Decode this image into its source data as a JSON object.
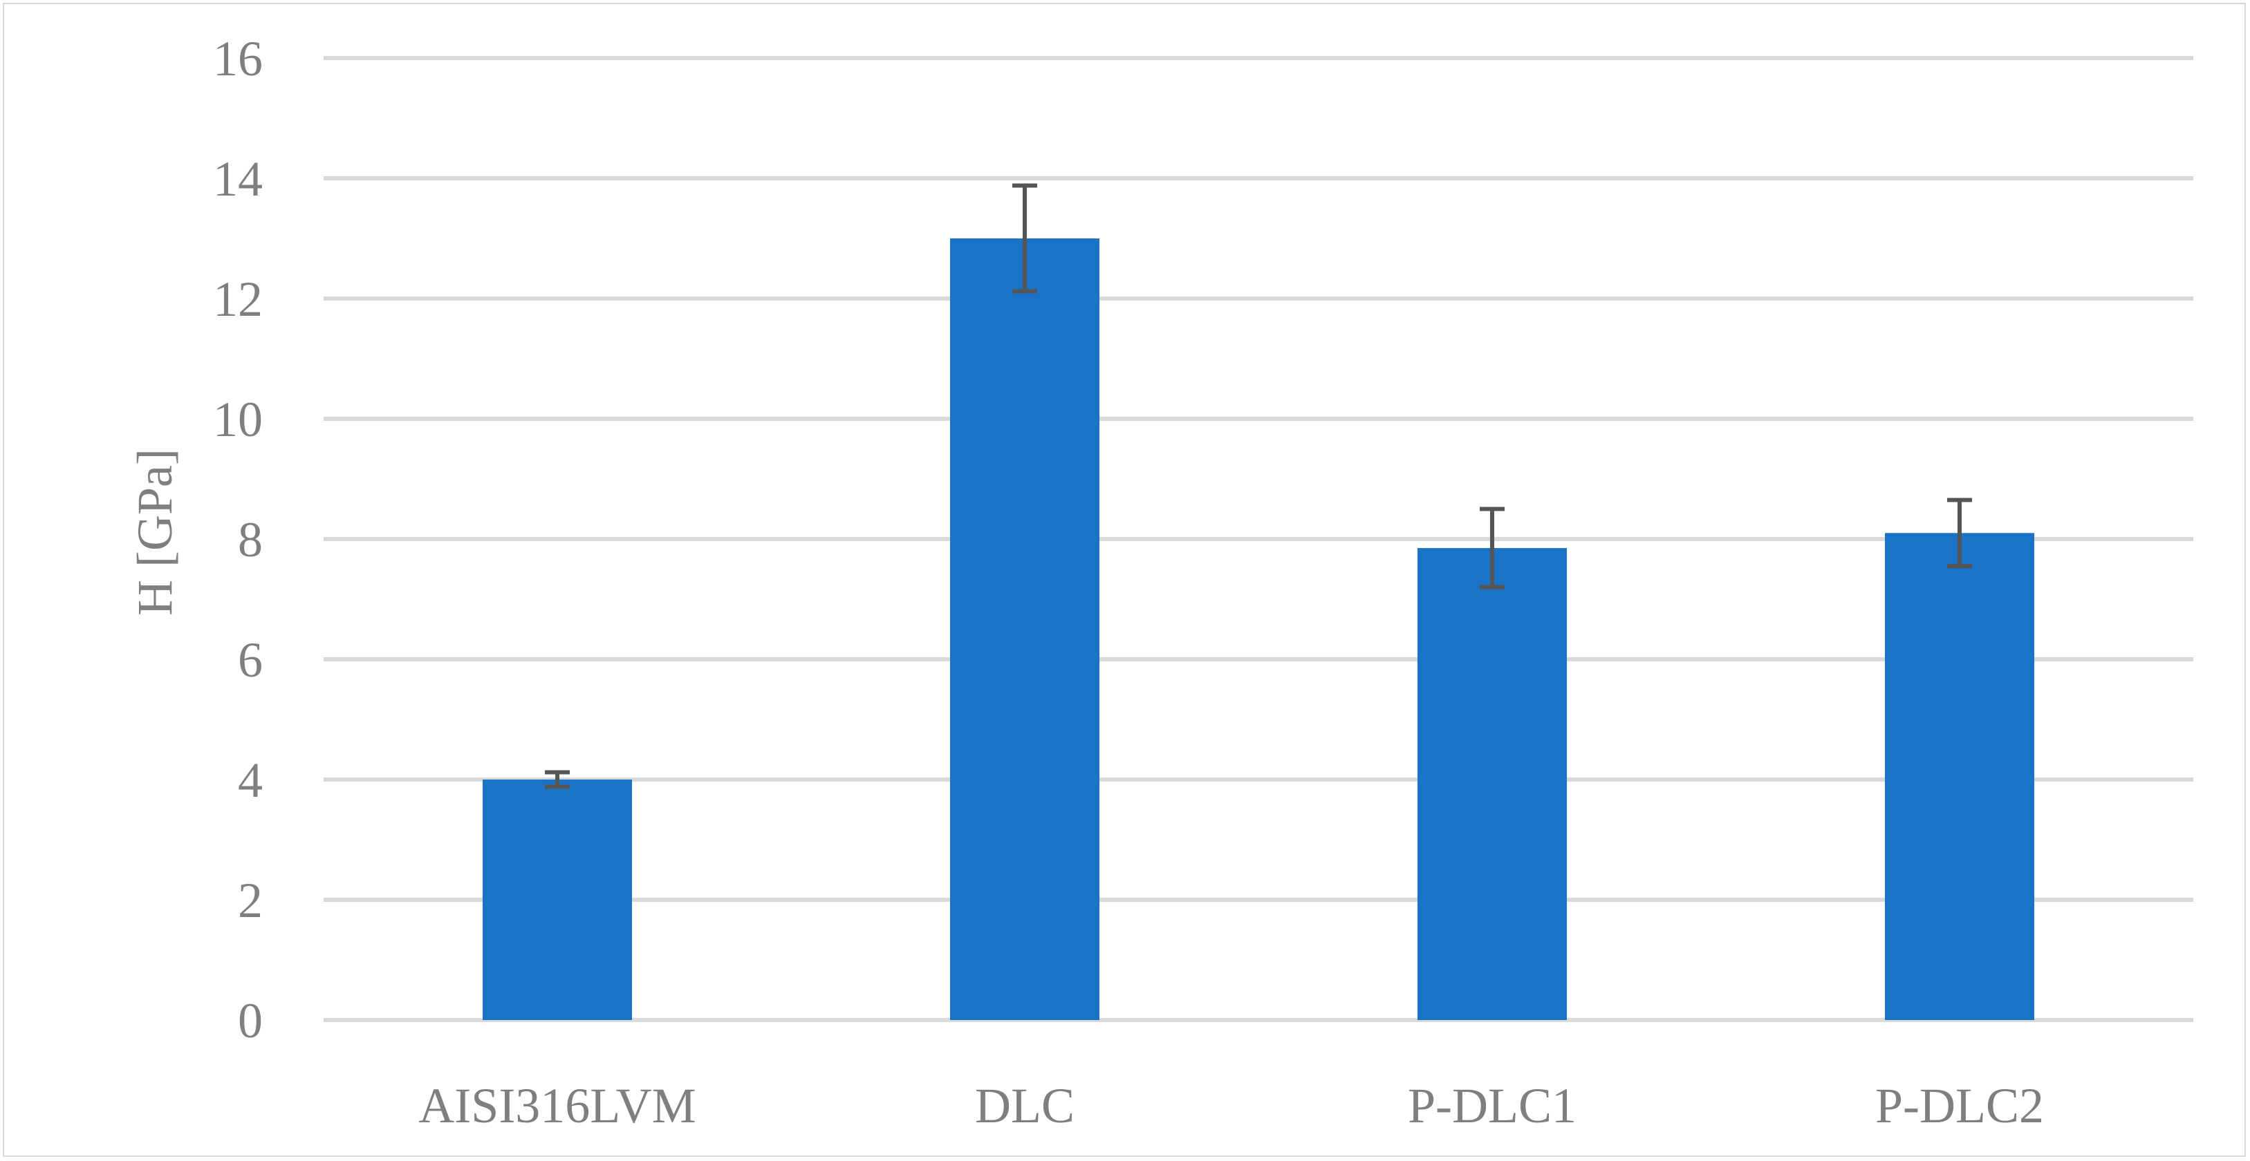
{
  "chart_data": {
    "type": "bar",
    "title": "",
    "xlabel": "",
    "ylabel": "H [GPa]",
    "ylim": [
      0,
      16
    ],
    "yticks": [
      0,
      2,
      4,
      6,
      8,
      10,
      12,
      14,
      16
    ],
    "categories": [
      "AISI316LVM",
      "DLC",
      "P-DLC1",
      "P-DLC2"
    ],
    "values": [
      4.0,
      13.0,
      7.85,
      8.1
    ],
    "errors": [
      0.12,
      0.88,
      0.65,
      0.55
    ],
    "grid": true,
    "legend": "none",
    "colors": {
      "bar": "#1a73c7",
      "error_bar": "#555555",
      "grid": "#d9d9d9",
      "text": "#7f7f7f"
    }
  }
}
